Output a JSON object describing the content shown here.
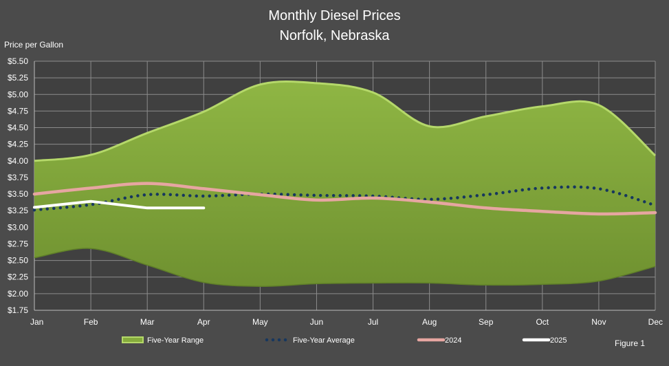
{
  "chart_data": {
    "type": "area",
    "title": "Monthly Diesel Prices",
    "subtitle": "Norfolk, Nebraska",
    "ylabel": "Price per Gallon",
    "xlabel": "",
    "categories": [
      "Jan",
      "Feb",
      "Mar",
      "Apr",
      "May",
      "Jun",
      "Jul",
      "Aug",
      "Sep",
      "Oct",
      "Nov",
      "Dec"
    ],
    "ylim": [
      1.75,
      5.5
    ],
    "yticks": [
      1.75,
      2.0,
      2.25,
      2.5,
      2.75,
      3.0,
      3.25,
      3.5,
      3.75,
      4.0,
      4.25,
      4.5,
      4.75,
      5.0,
      5.25,
      5.5
    ],
    "ytick_labels": [
      "$1.75",
      "$2.00",
      "$2.25",
      "$2.50",
      "$2.75",
      "$3.00",
      "$3.25",
      "$3.50",
      "$3.75",
      "$4.00",
      "$4.25",
      "$4.50",
      "$4.75",
      "$5.00",
      "$5.25",
      "$5.50"
    ],
    "grid": true,
    "legend_position": "bottom",
    "range": {
      "name": "Five-Year Range",
      "high": [
        4.0,
        4.09,
        4.42,
        4.74,
        5.15,
        5.17,
        5.03,
        4.52,
        4.67,
        4.82,
        4.84,
        4.08
      ],
      "low": [
        2.54,
        2.68,
        2.43,
        2.17,
        2.11,
        2.15,
        2.16,
        2.16,
        2.13,
        2.14,
        2.19,
        2.41
      ]
    },
    "series": [
      {
        "name": "Five-Year Average",
        "style": "dotted",
        "color": "#17375e",
        "values": [
          3.26,
          3.34,
          3.49,
          3.47,
          3.5,
          3.48,
          3.47,
          3.42,
          3.49,
          3.59,
          3.58,
          3.33
        ]
      },
      {
        "name": "2024",
        "style": "solid",
        "color": "#e6a6a1",
        "values": [
          3.5,
          3.59,
          3.66,
          3.58,
          3.49,
          3.41,
          3.44,
          3.38,
          3.29,
          3.24,
          3.2,
          3.22
        ]
      },
      {
        "name": "2025",
        "style": "solid",
        "color": "#ffffff",
        "values": [
          3.3,
          3.39,
          3.29,
          3.29,
          null,
          null,
          null,
          null,
          null,
          null,
          null,
          null
        ]
      }
    ]
  },
  "legend": {
    "range_label": "Five-Year Range",
    "average_label": "Five-Year Average",
    "y2024_label": "2024",
    "y2025_label": "2025"
  },
  "figure_label": "Figure 1",
  "colors": {
    "background": "#4b4b4b",
    "plot_background": "#404040",
    "range_fill": "#86ac3d",
    "range_edge": "#b5d86a",
    "gridline": "#8c8c8c"
  }
}
